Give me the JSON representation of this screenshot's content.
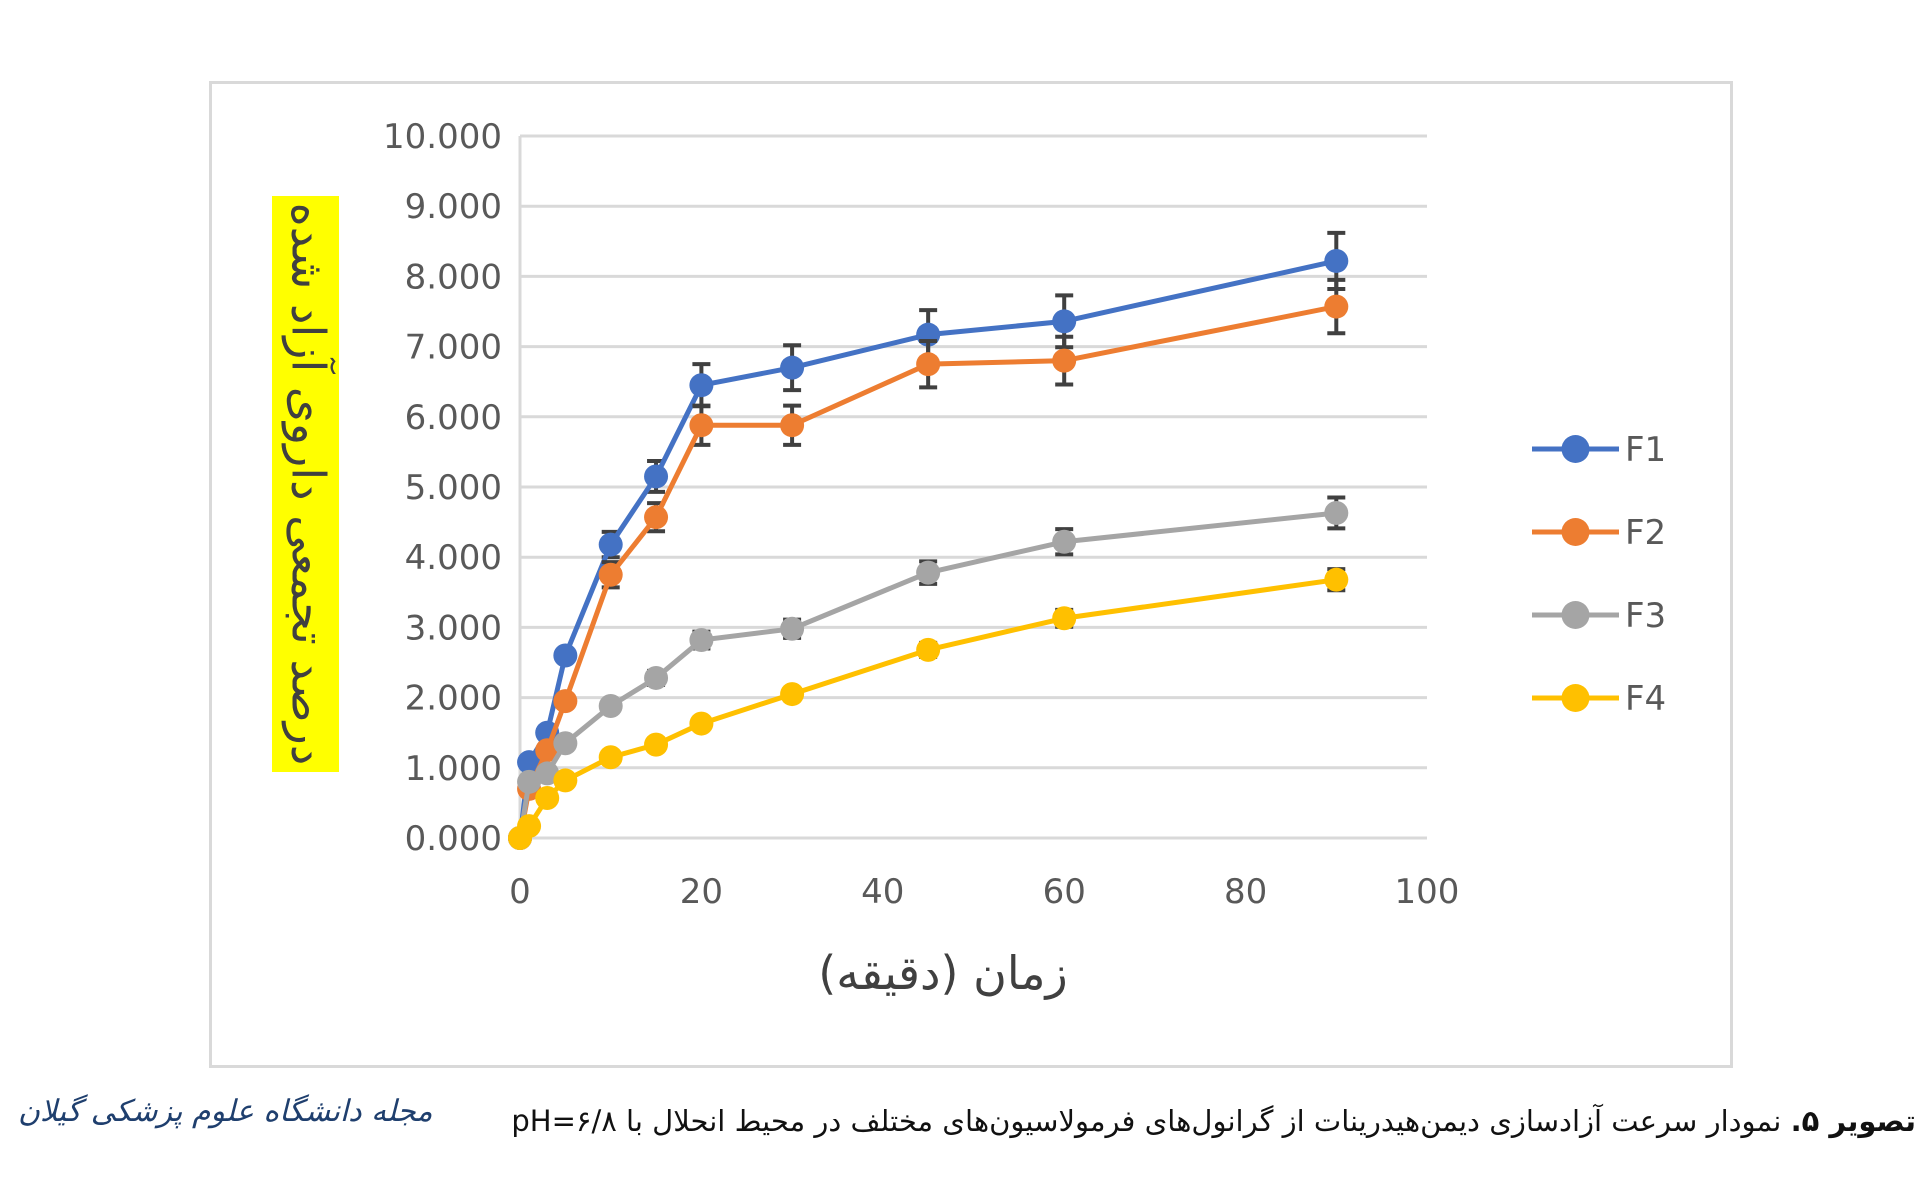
{
  "chart_data": {
    "type": "line",
    "title": "",
    "xlabel": "زمان (دقیقه)",
    "ylabel": "درصد تجمعی داروی آزاد شده",
    "xlim": [
      0,
      100
    ],
    "ylim": [
      0,
      10
    ],
    "x_ticks": [
      "0",
      "20",
      "40",
      "60",
      "80",
      "100"
    ],
    "y_ticks": [
      "0.000",
      "1.000",
      "2.000",
      "3.000",
      "4.000",
      "5.000",
      "6.000",
      "7.000",
      "8.000",
      "9.000",
      "10.000"
    ],
    "grid": "horizontal",
    "legend_position": "right",
    "ylabel_highlight": "#ffff00",
    "x": [
      0,
      1,
      3,
      5,
      10,
      15,
      20,
      30,
      45,
      60,
      90
    ],
    "series": [
      {
        "name": "F1",
        "color": "#4472c4",
        "values": [
          0,
          1.08,
          1.5,
          2.6,
          4.18,
          5.15,
          6.45,
          6.7,
          7.17,
          7.36,
          8.22
        ],
        "errors": [
          0,
          0.05,
          0.06,
          0.08,
          0.18,
          0.22,
          0.3,
          0.32,
          0.35,
          0.37,
          0.4
        ]
      },
      {
        "name": "F2",
        "color": "#ed7d31",
        "values": [
          0,
          0.7,
          1.25,
          1.95,
          3.75,
          4.57,
          5.88,
          5.88,
          6.75,
          6.8,
          7.57
        ],
        "errors": [
          0,
          0.05,
          0.06,
          0.08,
          0.18,
          0.2,
          0.28,
          0.28,
          0.33,
          0.34,
          0.38
        ]
      },
      {
        "name": "F3",
        "color": "#a5a5a5",
        "values": [
          0,
          0.8,
          0.92,
          1.35,
          1.88,
          2.28,
          2.82,
          2.98,
          3.78,
          4.22,
          4.63
        ],
        "errors": [
          0,
          0.03,
          0.04,
          0.06,
          0.08,
          0.1,
          0.12,
          0.13,
          0.16,
          0.18,
          0.22
        ]
      },
      {
        "name": "F4",
        "color": "#ffc000",
        "values": [
          0,
          0.17,
          0.57,
          0.82,
          1.15,
          1.33,
          1.63,
          2.05,
          2.68,
          3.13,
          3.68
        ],
        "errors": [
          0,
          0.02,
          0.03,
          0.04,
          0.05,
          0.06,
          0.07,
          0.08,
          0.1,
          0.12,
          0.15
        ]
      }
    ]
  },
  "caption": {
    "label": "تصویر ۵.",
    "text": "نمودار سرعت آزادسازی دیمن‌هیدرینات از گرانول‌های فرمولاسیون‌های مختلف در محیط انحلال با pH=۶/۸"
  },
  "journal_logo": "مجله دانشگاه علوم پزشکی گیلان"
}
